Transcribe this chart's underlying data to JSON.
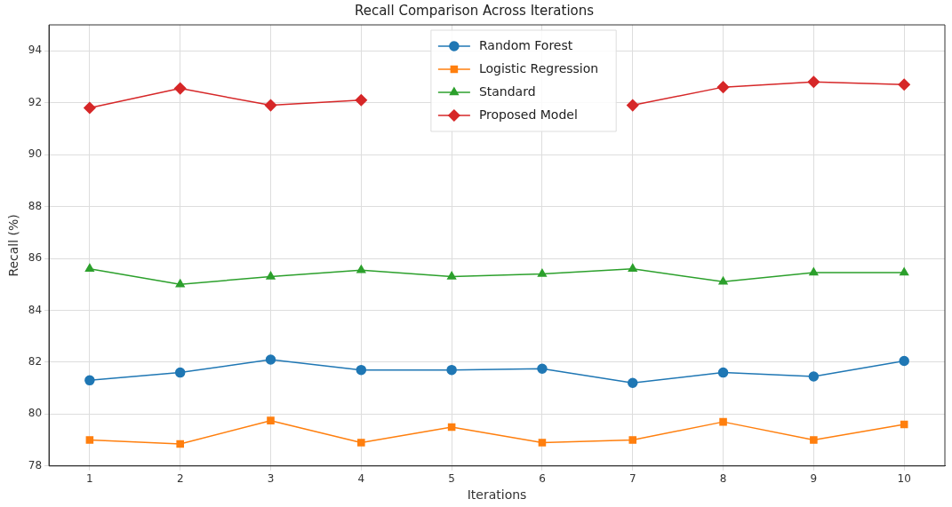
{
  "chart_data": {
    "type": "line",
    "title": "Recall Comparison Across Iterations",
    "xlabel": "Iterations",
    "ylabel": "Recall (%)",
    "x": [
      1,
      2,
      3,
      4,
      5,
      6,
      7,
      8,
      9,
      10
    ],
    "xlim": [
      0.55,
      10.45
    ],
    "xticks": [
      1,
      2,
      3,
      4,
      5,
      6,
      7,
      8,
      9,
      10
    ],
    "ylim": [
      78,
      95
    ],
    "yticks": [
      78,
      80,
      82,
      84,
      86,
      88,
      90,
      92,
      94
    ],
    "grid": true,
    "legend": "top",
    "series": [
      {
        "name": "Random Forest",
        "color": "#1f77b4",
        "marker": "circle",
        "values": [
          81.3,
          81.6,
          82.1,
          81.7,
          81.7,
          81.75,
          81.2,
          81.6,
          81.45,
          82.05
        ]
      },
      {
        "name": "Logistic Regression",
        "color": "#ff7f0e",
        "marker": "square",
        "values": [
          79.0,
          78.85,
          79.75,
          78.9,
          79.5,
          78.9,
          79.0,
          79.7,
          79.0,
          79.6
        ]
      },
      {
        "name": "Standard",
        "color": "#2ca02c",
        "marker": "triangle",
        "values": [
          85.6,
          85.0,
          85.3,
          85.55,
          85.3,
          85.4,
          85.6,
          85.1,
          85.45,
          85.45
        ]
      },
      {
        "name": "Proposed Model",
        "color": "#d62728",
        "marker": "diamond",
        "values": [
          91.8,
          92.55,
          91.9,
          92.1,
          null,
          null,
          91.9,
          92.6,
          92.8,
          92.7
        ]
      }
    ]
  }
}
